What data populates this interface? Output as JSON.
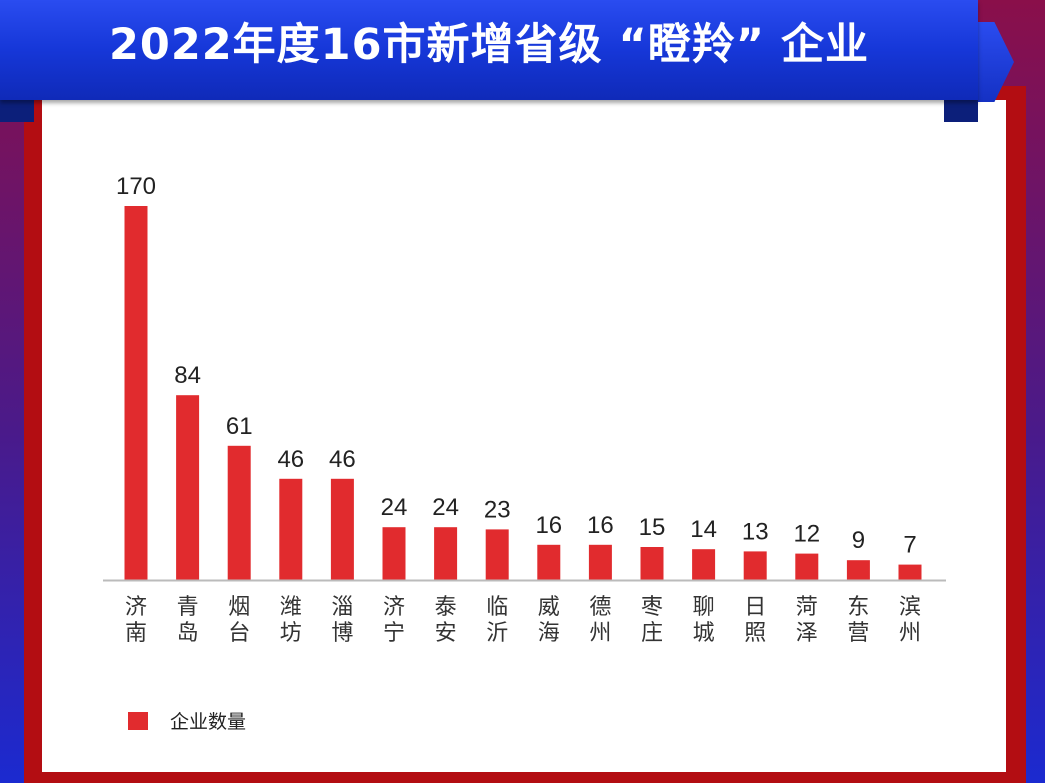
{
  "header": {
    "title": "2022年度16市新增省级 “瞪羚” 企业"
  },
  "colors": {
    "bar": "#e12b2e",
    "banner": "#1a3be0",
    "frame": "#b30d12",
    "axis": "#bbbbbb"
  },
  "chart_data": {
    "type": "bar",
    "title": "2022年度16市新增省级 “瞪羚” 企业",
    "categories": [
      "济南",
      "青岛",
      "烟台",
      "潍坊",
      "淄博",
      "济宁",
      "泰安",
      "临沂",
      "威海",
      "德州",
      "枣庄",
      "聊城",
      "日照",
      "菏泽",
      "东营",
      "滨州"
    ],
    "series": [
      {
        "name": "企业数量",
        "values": [
          170,
          84,
          61,
          46,
          46,
          24,
          24,
          23,
          16,
          16,
          15,
          14,
          13,
          12,
          9,
          7
        ]
      }
    ],
    "ylim": [
      0,
      170
    ],
    "grid": false,
    "legend": "bottom-left",
    "data_labels": true
  }
}
